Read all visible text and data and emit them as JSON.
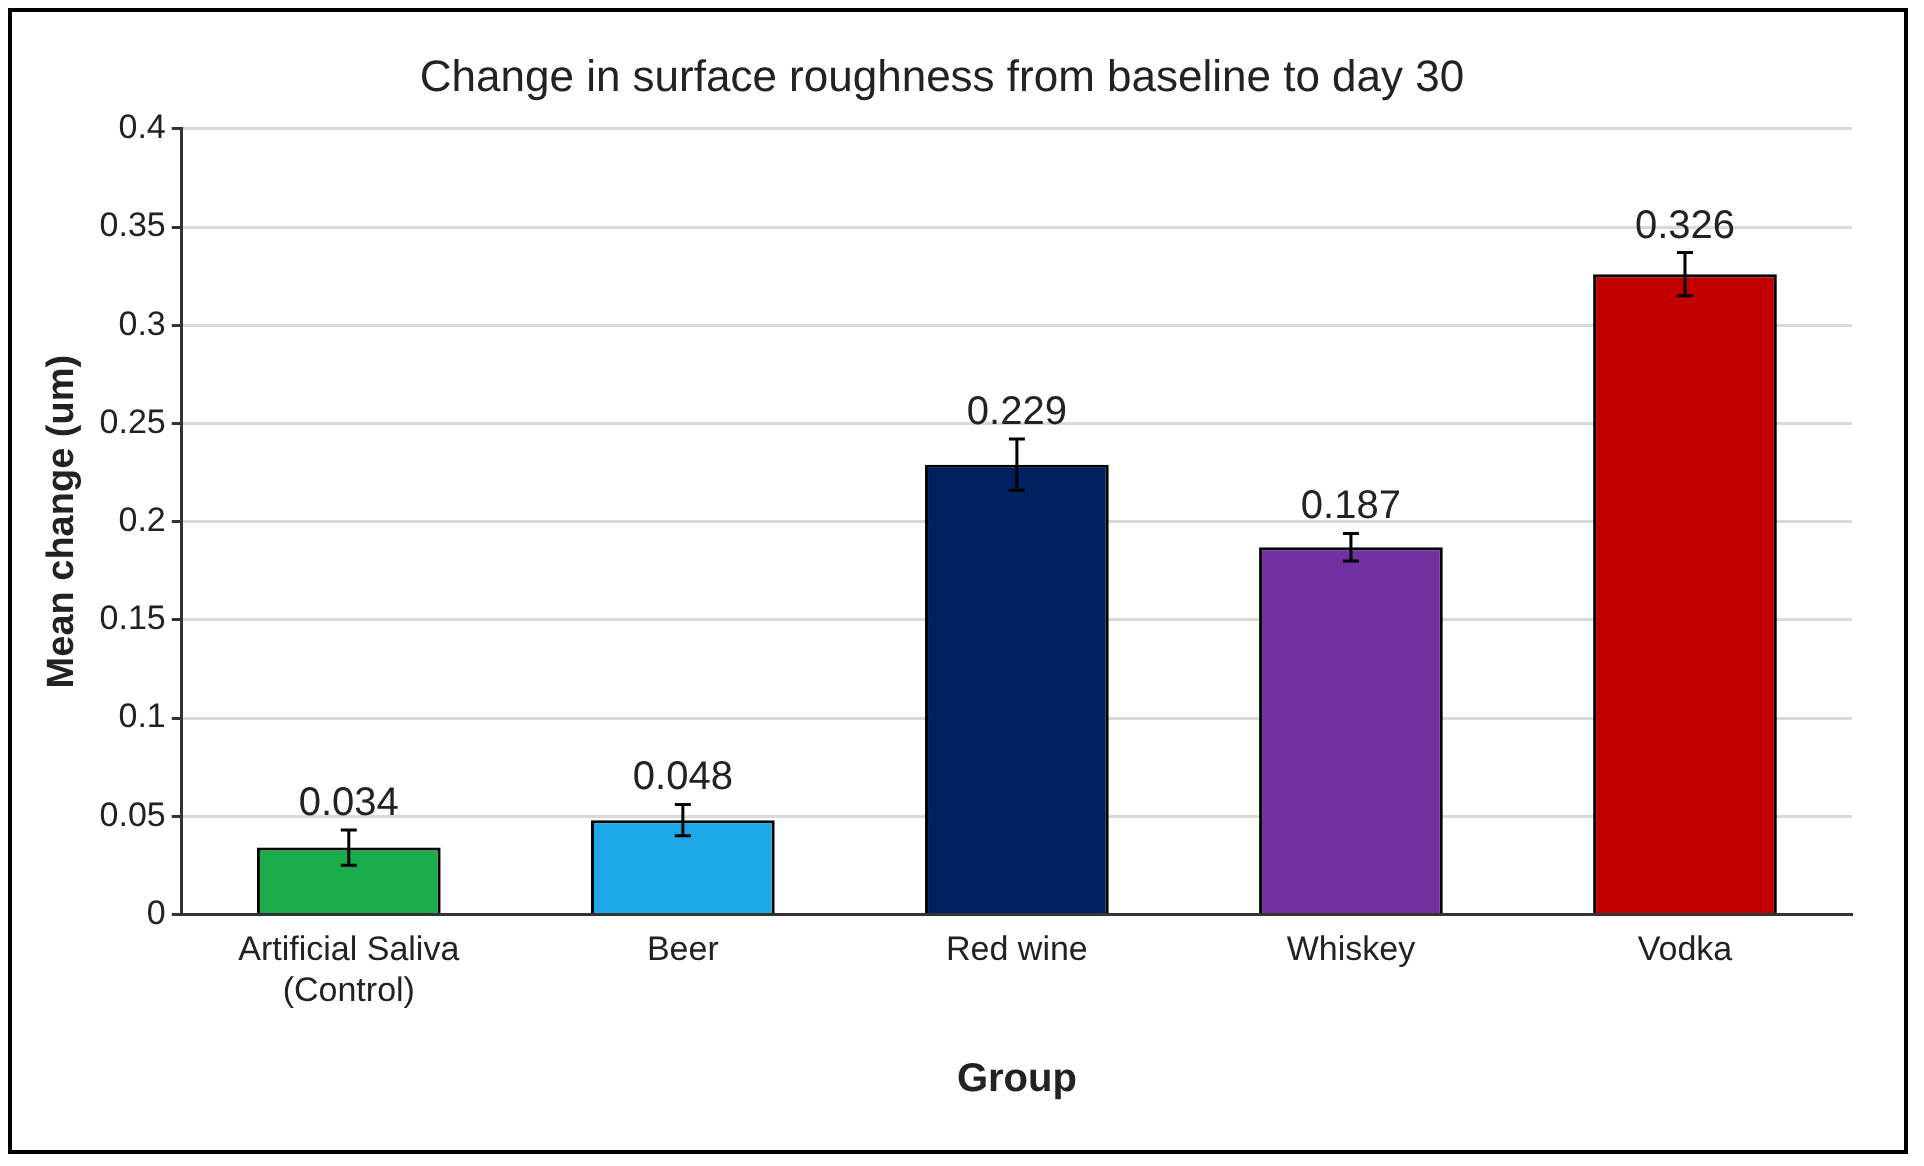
{
  "chart_data": {
    "type": "bar",
    "title": "Change in surface roughness from baseline to day 30",
    "xlabel": "Group",
    "ylabel": "Mean change (um)",
    "categories": [
      "Artificial Saliva\n(Control)",
      "Beer",
      "Red wine",
      "Whiskey",
      "Vodka"
    ],
    "values": [
      0.034,
      0.048,
      0.229,
      0.187,
      0.326
    ],
    "errors": [
      0.009,
      0.008,
      0.013,
      0.007,
      0.011
    ],
    "colors": [
      "#1aab4b",
      "#1ea8e8",
      "#002060",
      "#7030a0",
      "#c00000"
    ],
    "ylim": [
      0,
      0.4
    ],
    "yticks": [
      0,
      0.05,
      0.1,
      0.15,
      0.2,
      0.25,
      0.3,
      0.35,
      0.4
    ],
    "grid": "y",
    "legend": false,
    "data_labels": true
  }
}
